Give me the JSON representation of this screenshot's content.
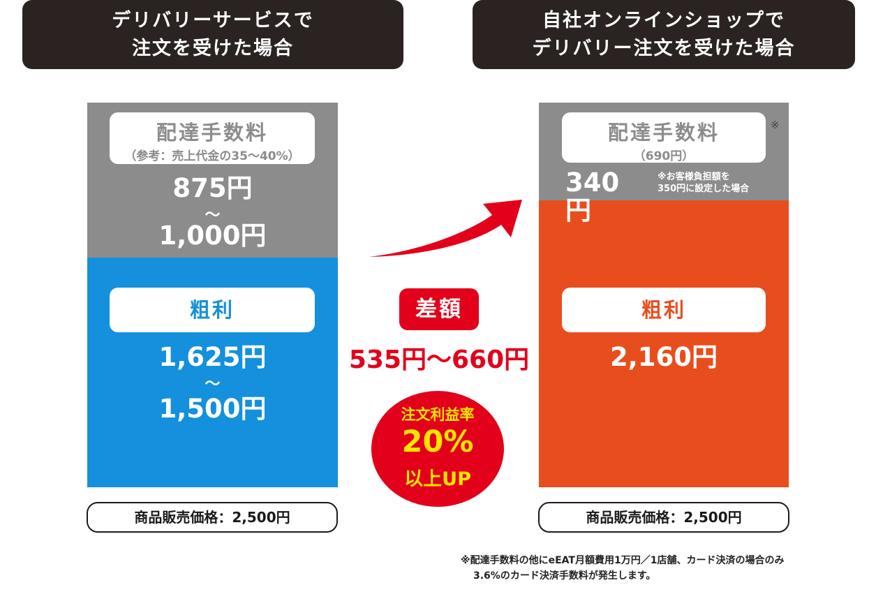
{
  "left": {
    "header_line1": "デリバリーサービスで",
    "header_line2": "注文を受けた場合",
    "fee_title": "配達手数料",
    "fee_sub": "（参考：売上代金の35〜40%）",
    "fee_amount_1": "875円",
    "fee_tilde": "〜",
    "fee_amount_2": "1,000円",
    "profit_title": "粗利",
    "profit_amount_1": "1,625円",
    "profit_tilde": "〜",
    "profit_amount_2": "1,500円",
    "price_label": "商品販売価格：2,500円"
  },
  "middle": {
    "diff_label": "差額",
    "diff_value": "535円〜660円",
    "circle_line1": "注文利益率",
    "circle_line2": "20%",
    "circle_line3": "以上UP"
  },
  "right": {
    "header_line1": "自社オンラインショップで",
    "header_line2": "デリバリー注文を受けた場合",
    "fee_title": "配達手数料",
    "fee_sub": "（690円）",
    "asterisk": "※",
    "fee_amount": "340円",
    "fee_note_1": "※お客様負担額を",
    "fee_note_2": "350円に設定した場合",
    "profit_title": "粗利",
    "profit_amount": "2,160円",
    "price_label": "商品販売価格：2,500円"
  },
  "footnote": {
    "line1": "※配達手数料の他にeEAT月額費用1万円／1店舗、カード決済の場合のみ",
    "line2": "3.6%のカード決済手数料が発生します。"
  },
  "colors": {
    "header_bg": "#2a2321",
    "fee_gray": "#8c8c8c",
    "profit_blue": "#1490dc",
    "profit_orange": "#e84e1d",
    "accent_red": "#e3001b",
    "accent_yellow": "#ffe600"
  },
  "icons": [
    "arrow-up-right-icon"
  ]
}
